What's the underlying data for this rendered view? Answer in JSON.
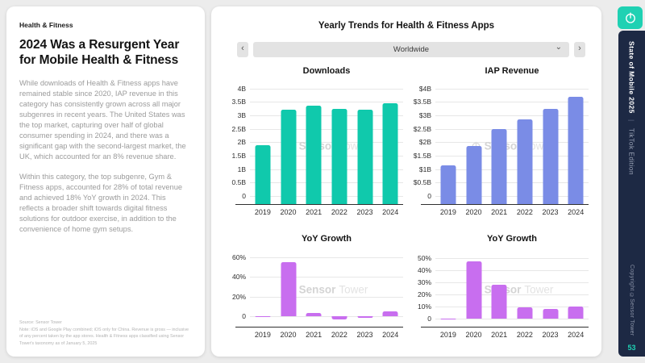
{
  "colors": {
    "accent_teal": "#1FD1B3",
    "navy": "#1D2944",
    "downloads_bar": "#10C9AC",
    "revenue_bar": "#7A8CE6",
    "yoy_bar": "#C86EEF",
    "background": "#ECECEC"
  },
  "left_panel": {
    "eyebrow": "Health & Fitness",
    "title": "2024 Was a Resurgent Year for Mobile Health & Fitness",
    "paragraph_1": "While downloads of Health & Fitness apps have remained stable since 2020, IAP revenue in this category has consistently grown across all major subgenres in recent years. The United States was the top market, capturing over half of global consumer spending in 2024, and there was a significant gap with the second-largest market, the UK, which accounted for an 8% revenue share.",
    "paragraph_2": "Within this category, the top subgenre, Gym & Fitness apps, accounted for 28% of total revenue and achieved 18% YoY growth in 2024. This reflects a broader shift towards digital fitness solutions for outdoor exercise, in addition to the convenience of home gym setups.",
    "source": "Source: Sensor Tower",
    "note": "Note: iOS and Google Play combined; iOS only for China. Revenue is gross — inclusive of any percent taken by the app stores. Health & Fitness apps classified using Sensor Tower's taxonomy as of January 5, 2025"
  },
  "main_panel": {
    "title": "Yearly Trends for Health & Fitness Apps",
    "region_selector": {
      "value": "Worldwide",
      "prev_icon": "‹",
      "next_icon": "›",
      "chevron_icon": "⌄"
    },
    "watermark": {
      "brand_bold": "Sensor",
      "brand_light": "Tower"
    }
  },
  "chart_data": [
    {
      "type": "bar",
      "title": "Downloads",
      "categories": [
        "2019",
        "2020",
        "2021",
        "2022",
        "2023",
        "2024"
      ],
      "values": [
        1.9,
        3.2,
        3.35,
        3.25,
        3.2,
        3.45
      ],
      "unit": "B",
      "color": "#10C9AC",
      "ylim": [
        -0.3,
        4.05
      ],
      "bar_base": "axis",
      "yticks": [
        {
          "v": 4,
          "label": "4B"
        },
        {
          "v": 3.5,
          "label": "3.5B"
        },
        {
          "v": 3,
          "label": "3B"
        },
        {
          "v": 2.5,
          "label": "2.5B"
        },
        {
          "v": 2,
          "label": "2B"
        },
        {
          "v": 1.5,
          "label": "1.5B"
        },
        {
          "v": 1,
          "label": "1B"
        },
        {
          "v": 0.5,
          "label": "0.5B"
        },
        {
          "v": 0,
          "label": "0"
        }
      ]
    },
    {
      "type": "bar",
      "title": "IAP Revenue",
      "categories": [
        "2019",
        "2020",
        "2021",
        "2022",
        "2023",
        "2024"
      ],
      "values": [
        1.15,
        1.85,
        2.5,
        2.85,
        3.25,
        3.7
      ],
      "unit": "$B",
      "color": "#7A8CE6",
      "ylim": [
        -0.3,
        4.05
      ],
      "bar_base": "axis",
      "yticks": [
        {
          "v": 4,
          "label": "$4B"
        },
        {
          "v": 3.5,
          "label": "$3.5B"
        },
        {
          "v": 3,
          "label": "$3B"
        },
        {
          "v": 2.5,
          "label": "$2.5B"
        },
        {
          "v": 2,
          "label": "$2B"
        },
        {
          "v": 1.5,
          "label": "$1.5B"
        },
        {
          "v": 1,
          "label": "$1B"
        },
        {
          "v": 0.5,
          "label": "$0.5B"
        },
        {
          "v": 0,
          "label": "0"
        }
      ]
    },
    {
      "type": "bar",
      "title": "YoY Growth",
      "categories": [
        "2019",
        "2020",
        "2021",
        "2022",
        "2023",
        "2024"
      ],
      "values": [
        -1,
        55,
        3,
        -4,
        -2,
        5
      ],
      "unit": "%",
      "color": "#C86EEF",
      "ylim": [
        -11,
        66
      ],
      "bar_base": "zero",
      "yticks": [
        {
          "v": 60,
          "label": "60%"
        },
        {
          "v": 40,
          "label": "40%"
        },
        {
          "v": 20,
          "label": "20%"
        },
        {
          "v": 0,
          "label": "0"
        }
      ]
    },
    {
      "type": "bar",
      "title": "YoY Growth",
      "categories": [
        "2019",
        "2020",
        "2021",
        "2022",
        "2023",
        "2024"
      ],
      "values": [
        -1,
        47,
        28,
        9,
        8,
        10
      ],
      "unit": "%",
      "color": "#C86EEF",
      "ylim": [
        -7,
        55
      ],
      "bar_base": "zero",
      "yticks": [
        {
          "v": 50,
          "label": "50%"
        },
        {
          "v": 40,
          "label": "40%"
        },
        {
          "v": 30,
          "label": "30%"
        },
        {
          "v": 20,
          "label": "20%"
        },
        {
          "v": 10,
          "label": "10%"
        },
        {
          "v": 0,
          "label": "0"
        }
      ]
    }
  ],
  "sidebar": {
    "report_title": "State of Mobile 2025",
    "separator": "|",
    "edition": "TikTok Edition",
    "copyright": "Copyright ©Sensor Tower",
    "page_number": "53"
  }
}
